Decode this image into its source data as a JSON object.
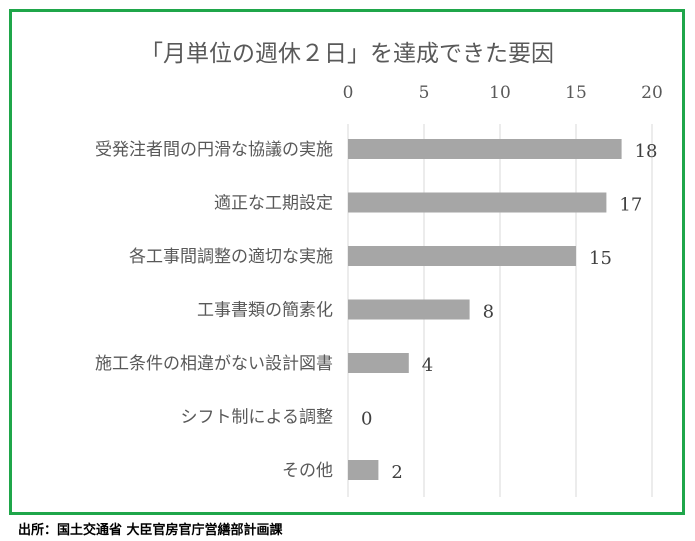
{
  "chart_data": {
    "type": "bar",
    "orientation": "horizontal",
    "title": "「月単位の週休２日」を達成できた要因",
    "categories": [
      "受発注者間の円滑な協議の実施",
      "適正な工期設定",
      "各工事間調整の適切な実施",
      "工事書類の簡素化",
      "施工条件の相違がない設計図書",
      "シフト制による調整",
      "その他"
    ],
    "values": [
      18,
      17,
      15,
      8,
      4,
      0,
      2
    ],
    "xlim": [
      0,
      20
    ],
    "xticks": [
      "0",
      "5",
      "10",
      "15",
      "20"
    ],
    "axis_position": "top",
    "grid": true,
    "bar_color": "#a6a6a6"
  },
  "source": "出所：国土交通省 大臣官房官庁営繕部計画課",
  "colors": {
    "frame": "#1fa64a",
    "grid": "#d9d9d9",
    "text": "#595959"
  }
}
